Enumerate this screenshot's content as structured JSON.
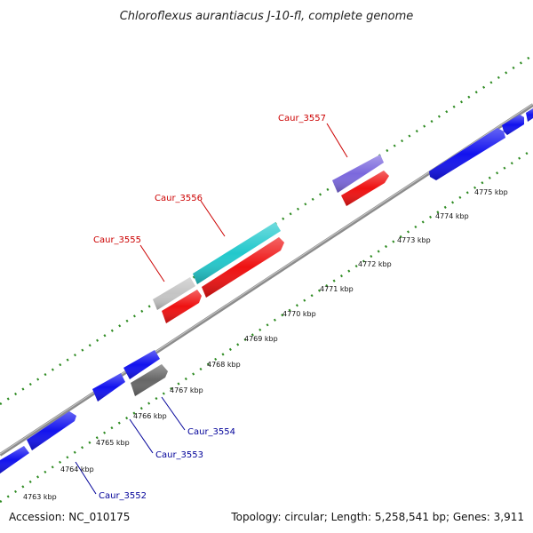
{
  "title": "Chloroflexus aurantiacus J-10-fl, complete genome",
  "footer": {
    "accession": "Accession: NC_010175",
    "summary": "Topology: circular; Length: 5,258,541 bp; Genes: 3,911"
  },
  "ticks": [
    "4763 kbp",
    "4764 kbp",
    "4765 kbp",
    "4766 kbp",
    "4767 kbp",
    "4768 kbp",
    "4769 kbp",
    "4770 kbp",
    "4771 kbp",
    "4772 kbp",
    "4773 kbp",
    "4774 kbp",
    "4775 kbp"
  ],
  "gene_labels": {
    "caur_3552": "Caur_3552",
    "caur_3553": "Caur_3553",
    "caur_3554": "Caur_3554",
    "caur_3555": "Caur_3555",
    "caur_3556": "Caur_3556",
    "caur_3557": "Caur_3557"
  },
  "colors": {
    "backbone": "#8c8c8c",
    "dots": "#2e8b22",
    "gene_blue": "#1212ee",
    "gene_red": "#ee1111",
    "gene_cyan": "#22c8cc",
    "gene_gray": "#c4c4c4",
    "gene_darkgray": "#666666",
    "gene_purple": "#7b68dd",
    "label_red": "#cc0000",
    "label_blue": "#000099"
  }
}
